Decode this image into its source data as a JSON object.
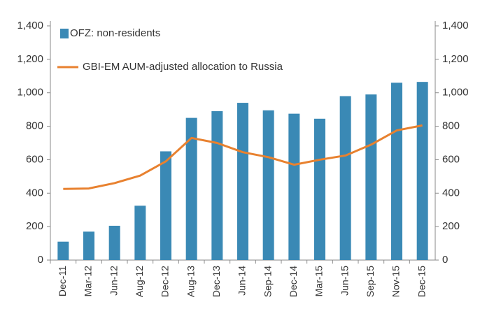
{
  "chart_data": {
    "type": "bar",
    "categories": [
      "Dec-11",
      "Mar-12",
      "Jun-12",
      "Aug-12",
      "Dec-12",
      "Aug-13",
      "Dec-13",
      "Jun-14",
      "Sep-14",
      "Dec-14",
      "Mar-15",
      "Jun-15",
      "Sep-15",
      "Nov-15",
      "Dec-15"
    ],
    "series": [
      {
        "name": "OFZ: non-residents",
        "type": "bar",
        "color": "#3a89b5",
        "values": [
          110,
          170,
          205,
          325,
          650,
          850,
          890,
          940,
          895,
          875,
          845,
          980,
          990,
          1060,
          1065
        ]
      },
      {
        "name": "GBI-EM AUM-adjusted allocation to Russia",
        "type": "line",
        "axis": "y2",
        "color": "#e8812f",
        "values": [
          425,
          428,
          460,
          505,
          590,
          730,
          700,
          645,
          615,
          570,
          600,
          625,
          690,
          775,
          805
        ]
      }
    ],
    "ylim": [
      0,
      1400
    ],
    "yticks": [
      0,
      200,
      400,
      600,
      800,
      {
        "value": 1000,
        "label": "1,000"
      },
      {
        "value": 1200,
        "label": "1,200"
      },
      {
        "value": 1400,
        "label": "1,400"
      }
    ],
    "y2lim": [
      0,
      1400
    ],
    "y2ticks": [
      0,
      200,
      400,
      600,
      800,
      {
        "value": 1000,
        "label": "1,000"
      },
      {
        "value": 1200,
        "label": "1,200"
      },
      {
        "value": 1400,
        "label": "1,400"
      }
    ],
    "legend": "upper left"
  }
}
